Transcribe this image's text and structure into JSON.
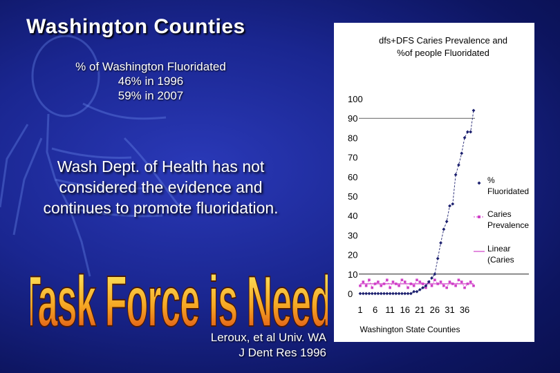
{
  "slide": {
    "title": "Washington Counties",
    "fluoridated_heading": "% of Washington Fluoridated",
    "fluoridated_1996": "46% in 1996",
    "fluoridated_2007": "59% in 2007",
    "statement_lines": [
      "Wash Dept. of Health has not",
      "considered the evidence and",
      "continues to promote fluoridation."
    ],
    "banner_text": "A Task Force is Needed",
    "citation_line1": "Leroux, et al  Univ. WA",
    "citation_line2": "J Dent Res 1996"
  },
  "colors": {
    "background": "#1a2690",
    "banner_top": "#fff36a",
    "banner_bottom": "#d83a12",
    "fluoridated_series": "#1b1f6e",
    "caries_series": "#d040c8",
    "linear_series": "#d040c8"
  },
  "chart_data": {
    "type": "line",
    "title_lines": [
      "dfs+DFS Caries Prevalence and",
      "%of people Fluoridated"
    ],
    "xlabel": "Washington State Counties",
    "ylabel": "",
    "xlim": [
      1,
      39
    ],
    "ylim": [
      0,
      100
    ],
    "y_ticks": [
      0,
      10,
      20,
      30,
      40,
      50,
      60,
      70,
      80,
      90,
      100
    ],
    "x_ticks": [
      1,
      6,
      11,
      16,
      21,
      26,
      31,
      36
    ],
    "grid": false,
    "legend_position": "right",
    "x": [
      1,
      2,
      3,
      4,
      5,
      6,
      7,
      8,
      9,
      10,
      11,
      12,
      13,
      14,
      15,
      16,
      17,
      18,
      19,
      20,
      21,
      22,
      23,
      24,
      25,
      26,
      27,
      28,
      29,
      30,
      31,
      32,
      33,
      34,
      35,
      36,
      37,
      38,
      39
    ],
    "series": [
      {
        "name": "% Fluoridated",
        "marker": "diamond",
        "values": [
          0,
          0,
          0,
          0,
          0,
          0,
          0,
          0,
          0,
          0,
          0,
          0,
          0,
          0,
          0,
          0,
          0,
          0,
          1,
          1,
          2,
          3,
          4,
          6,
          8,
          10,
          18,
          26,
          33,
          37,
          45,
          46,
          61,
          66,
          72,
          80,
          83,
          83,
          94
        ]
      },
      {
        "name": "Caries Prevalence",
        "marker": "square",
        "values": [
          4,
          6,
          4,
          7,
          3,
          5,
          6,
          4,
          5,
          7,
          3,
          6,
          5,
          4,
          7,
          6,
          3,
          5,
          4,
          7,
          6,
          5,
          3,
          6,
          4,
          7,
          5,
          6,
          4,
          3,
          6,
          5,
          4,
          7,
          6,
          3,
          5,
          6,
          4
        ]
      },
      {
        "name": "Linear (Caries Prevalence)",
        "marker": "none",
        "values": [
          5,
          5,
          5,
          5,
          5,
          5,
          5,
          5,
          5,
          5,
          5,
          5,
          5,
          5,
          5,
          5,
          5,
          5,
          5,
          5,
          5,
          5,
          5,
          5,
          5,
          5,
          5,
          5,
          5,
          5,
          5,
          5,
          5,
          5,
          5,
          5,
          5,
          5,
          5
        ]
      }
    ],
    "legend_lines": [
      [
        "%",
        "Fluoridated"
      ],
      [
        "Caries",
        "Prevalence"
      ],
      [
        "Linear",
        "(Caries"
      ]
    ]
  }
}
